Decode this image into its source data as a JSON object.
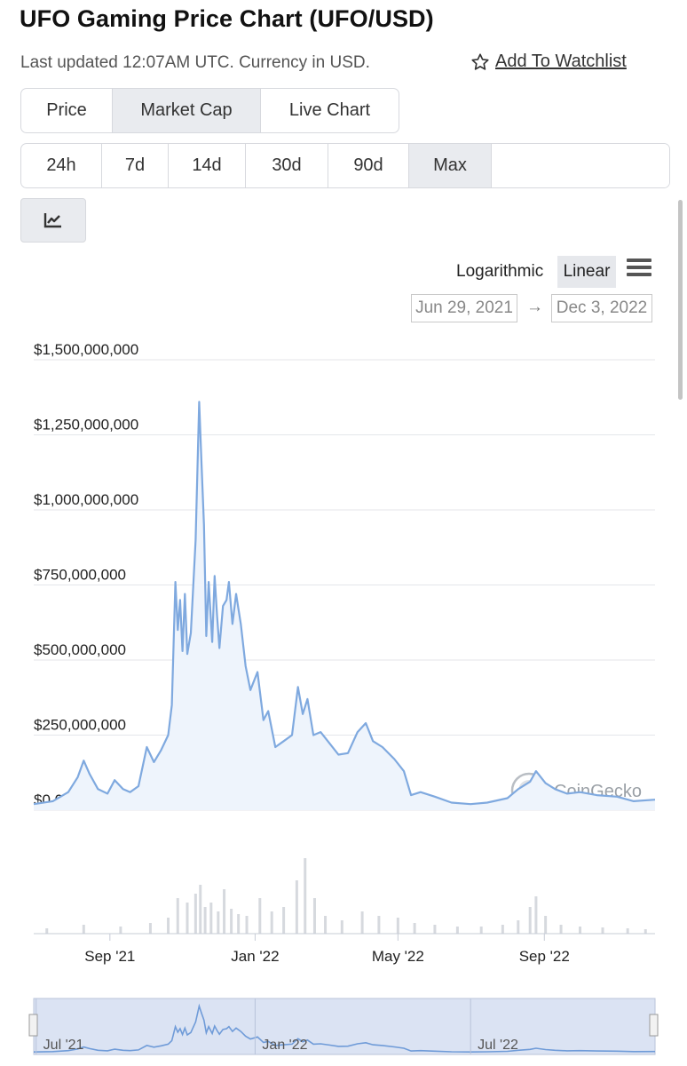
{
  "header": {
    "title": "UFO Gaming Price Chart (UFO/USD)",
    "updated": "Last updated 12:07AM UTC. Currency in USD.",
    "watchlist_label": "Add To Watchlist"
  },
  "tabs": [
    {
      "label": "Price",
      "active": false
    },
    {
      "label": "Market Cap",
      "active": true
    },
    {
      "label": "Live Chart",
      "active": false
    }
  ],
  "ranges": [
    {
      "label": "24h",
      "active": false
    },
    {
      "label": "7d",
      "active": false
    },
    {
      "label": "14d",
      "active": false
    },
    {
      "label": "30d",
      "active": false
    },
    {
      "label": "90d",
      "active": false
    },
    {
      "label": "Max",
      "active": true
    }
  ],
  "chart_type_icon": "line-chart-icon",
  "scale": {
    "log_label": "Logarithmic",
    "linear_label": "Linear",
    "active": "Linear"
  },
  "date_range": {
    "from": "Jun 29, 2021",
    "arrow": "→",
    "to": "Dec 3, 2022"
  },
  "watermark": "CoinGecko",
  "colors": {
    "line": "#7fa9df",
    "area": "#eef4fc",
    "active_bg": "#e9ebef",
    "navigator": "#cfd9ef"
  },
  "chart_data": {
    "type": "area",
    "title": "",
    "xlabel": "",
    "ylabel": "",
    "ylim": [
      0,
      1500000000
    ],
    "yticks": [
      {
        "value": 1500000000,
        "label": "$1,500,000,000"
      },
      {
        "value": 1250000000,
        "label": "$1,250,000,000"
      },
      {
        "value": 1000000000,
        "label": "$1,000,000,000"
      },
      {
        "value": 750000000,
        "label": "$750,000,000"
      },
      {
        "value": 500000000,
        "label": "$500,000,000"
      },
      {
        "value": 250000000,
        "label": "$250,000,000"
      },
      {
        "value": 0,
        "label": "$0.00"
      }
    ],
    "xlim": [
      "2021-06-29",
      "2022-12-03"
    ],
    "xticks": [
      {
        "date": "2021-09-01",
        "label": "Sep '21"
      },
      {
        "date": "2022-01-01",
        "label": "Jan '22"
      },
      {
        "date": "2022-05-01",
        "label": "May '22"
      },
      {
        "date": "2022-09-01",
        "label": "Sep '22"
      }
    ],
    "series": [
      {
        "points": [
          [
            "2021-06-29",
            20000000
          ],
          [
            "2021-07-15",
            30000000
          ],
          [
            "2021-07-28",
            60000000
          ],
          [
            "2021-08-05",
            110000000
          ],
          [
            "2021-08-10",
            165000000
          ],
          [
            "2021-08-15",
            120000000
          ],
          [
            "2021-08-22",
            70000000
          ],
          [
            "2021-08-30",
            55000000
          ],
          [
            "2021-09-05",
            100000000
          ],
          [
            "2021-09-12",
            70000000
          ],
          [
            "2021-09-18",
            60000000
          ],
          [
            "2021-09-25",
            80000000
          ],
          [
            "2021-10-02",
            210000000
          ],
          [
            "2021-10-08",
            160000000
          ],
          [
            "2021-10-14",
            200000000
          ],
          [
            "2021-10-20",
            250000000
          ],
          [
            "2021-10-23",
            350000000
          ],
          [
            "2021-10-26",
            760000000
          ],
          [
            "2021-10-28",
            600000000
          ],
          [
            "2021-10-30",
            700000000
          ],
          [
            "2021-11-01",
            530000000
          ],
          [
            "2021-11-03",
            720000000
          ],
          [
            "2021-11-05",
            520000000
          ],
          [
            "2021-11-08",
            590000000
          ],
          [
            "2021-11-12",
            900000000
          ],
          [
            "2021-11-15",
            1360000000
          ],
          [
            "2021-11-17",
            1150000000
          ],
          [
            "2021-11-19",
            950000000
          ],
          [
            "2021-11-21",
            580000000
          ],
          [
            "2021-11-23",
            760000000
          ],
          [
            "2021-11-26",
            560000000
          ],
          [
            "2021-11-28",
            780000000
          ],
          [
            "2021-11-30",
            650000000
          ],
          [
            "2021-12-02",
            540000000
          ],
          [
            "2021-12-05",
            680000000
          ],
          [
            "2021-12-08",
            700000000
          ],
          [
            "2021-12-10",
            760000000
          ],
          [
            "2021-12-13",
            620000000
          ],
          [
            "2021-12-16",
            720000000
          ],
          [
            "2021-12-20",
            620000000
          ],
          [
            "2021-12-24",
            480000000
          ],
          [
            "2021-12-28",
            400000000
          ],
          [
            "2022-01-03",
            460000000
          ],
          [
            "2022-01-08",
            300000000
          ],
          [
            "2022-01-12",
            330000000
          ],
          [
            "2022-01-18",
            210000000
          ],
          [
            "2022-01-25",
            230000000
          ],
          [
            "2022-02-01",
            250000000
          ],
          [
            "2022-02-06",
            410000000
          ],
          [
            "2022-02-10",
            320000000
          ],
          [
            "2022-02-14",
            370000000
          ],
          [
            "2022-02-19",
            250000000
          ],
          [
            "2022-02-25",
            260000000
          ],
          [
            "2022-03-05",
            220000000
          ],
          [
            "2022-03-12",
            185000000
          ],
          [
            "2022-03-20",
            190000000
          ],
          [
            "2022-03-28",
            260000000
          ],
          [
            "2022-04-04",
            290000000
          ],
          [
            "2022-04-10",
            230000000
          ],
          [
            "2022-04-18",
            210000000
          ],
          [
            "2022-04-28",
            170000000
          ],
          [
            "2022-05-06",
            130000000
          ],
          [
            "2022-05-12",
            50000000
          ],
          [
            "2022-05-20",
            60000000
          ],
          [
            "2022-06-01",
            45000000
          ],
          [
            "2022-06-15",
            25000000
          ],
          [
            "2022-07-01",
            20000000
          ],
          [
            "2022-07-15",
            25000000
          ],
          [
            "2022-08-01",
            40000000
          ],
          [
            "2022-08-10",
            70000000
          ],
          [
            "2022-08-20",
            95000000
          ],
          [
            "2022-08-25",
            130000000
          ],
          [
            "2022-09-02",
            90000000
          ],
          [
            "2022-09-10",
            70000000
          ],
          [
            "2022-09-20",
            55000000
          ],
          [
            "2022-10-01",
            60000000
          ],
          [
            "2022-10-15",
            50000000
          ],
          [
            "2022-11-01",
            45000000
          ],
          [
            "2022-11-15",
            30000000
          ],
          [
            "2022-12-03",
            35000000
          ]
        ]
      }
    ],
    "volume": {
      "dates": [
        "2021-07-10",
        "2021-08-10",
        "2021-09-10",
        "2021-10-05",
        "2021-10-20",
        "2021-10-28",
        "2021-11-05",
        "2021-11-12",
        "2021-11-16",
        "2021-11-20",
        "2021-11-25",
        "2021-12-01",
        "2021-12-06",
        "2021-12-12",
        "2021-12-18",
        "2021-12-25",
        "2022-01-05",
        "2022-01-15",
        "2022-01-25",
        "2022-02-05",
        "2022-02-12",
        "2022-02-20",
        "2022-03-01",
        "2022-03-15",
        "2022-04-01",
        "2022-04-15",
        "2022-05-01",
        "2022-05-15",
        "2022-06-01",
        "2022-06-20",
        "2022-07-10",
        "2022-07-28",
        "2022-08-10",
        "2022-08-20",
        "2022-08-25",
        "2022-09-02",
        "2022-09-15",
        "2022-10-01",
        "2022-10-20",
        "2022-11-10",
        "2022-11-25"
      ],
      "values": [
        6,
        10,
        8,
        12,
        18,
        40,
        35,
        45,
        55,
        30,
        35,
        25,
        50,
        28,
        22,
        20,
        40,
        25,
        30,
        60,
        85,
        40,
        20,
        15,
        25,
        20,
        18,
        12,
        10,
        8,
        8,
        10,
        15,
        30,
        42,
        20,
        10,
        8,
        7,
        6,
        5
      ]
    },
    "navigator": {
      "xticks": [
        {
          "date": "2021-07-01",
          "label": "Jul '21"
        },
        {
          "date": "2022-01-01",
          "label": "Jan '22"
        },
        {
          "date": "2022-07-01",
          "label": "Jul '22"
        }
      ]
    }
  }
}
